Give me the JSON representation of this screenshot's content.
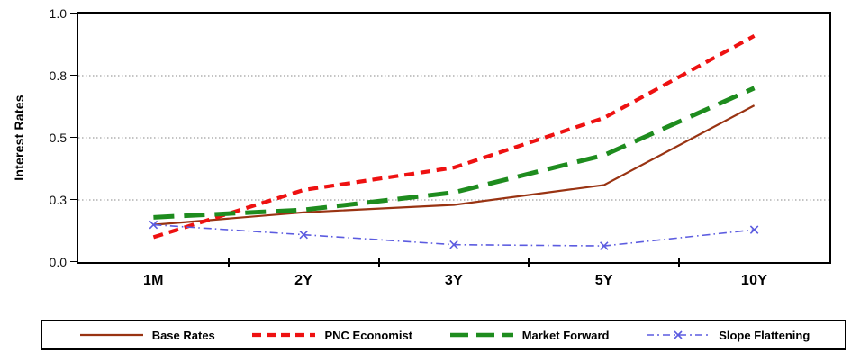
{
  "chart_data": {
    "type": "line",
    "title": "",
    "xlabel": "",
    "ylabel": "Interest Rates",
    "categories": [
      "1M",
      "2Y",
      "3Y",
      "5Y",
      "10Y"
    ],
    "ylim": [
      0,
      1.0
    ],
    "ytick_values": [
      0,
      0.25,
      0.5,
      0.75,
      1.0
    ],
    "ytick_labels": [
      "0.0",
      "0.3",
      "0.5",
      "0.8",
      "1.0"
    ],
    "grid": "horizontal-dotted",
    "gridline_color": "#8a8a8a",
    "axis_color": "#000000",
    "legend_position": "bottom-box",
    "series": [
      {
        "name": "Base Rates",
        "color": "#993312",
        "style": "solid",
        "width": 2.2,
        "marker": "none",
        "values": [
          0.15,
          0.2,
          0.23,
          0.31,
          0.63
        ]
      },
      {
        "name": "PNC Economist",
        "color": "#ee1111",
        "style": "dashed",
        "width": 4.2,
        "marker": "none",
        "values": [
          0.1,
          0.29,
          0.38,
          0.58,
          0.91
        ]
      },
      {
        "name": "Market Forward",
        "color": "#1e8c1e",
        "style": "long-dash",
        "width": 5.0,
        "marker": "none",
        "values": [
          0.18,
          0.21,
          0.28,
          0.43,
          0.7
        ]
      },
      {
        "name": "Slope Flattening",
        "color": "#5c5ce0",
        "style": "dash-dot",
        "width": 1.6,
        "marker": "x",
        "values": [
          0.15,
          0.11,
          0.07,
          0.065,
          0.13
        ]
      }
    ]
  }
}
